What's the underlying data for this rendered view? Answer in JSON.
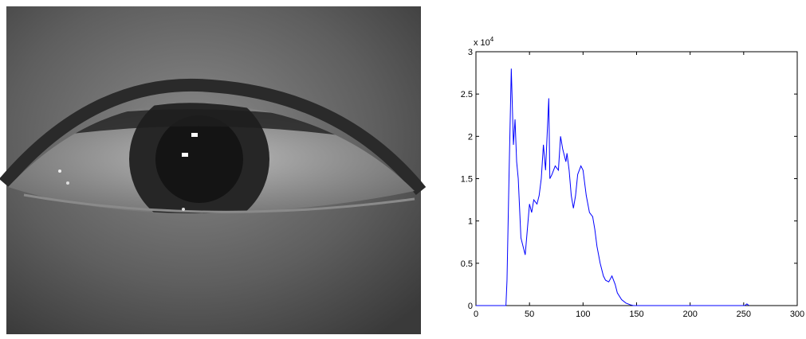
{
  "chart_data": {
    "type": "line",
    "y_multiplier": "x 10",
    "y_multiplier_exponent": "4",
    "x": [
      0,
      28,
      29,
      31,
      33,
      35,
      36.5,
      38,
      39.5,
      42,
      44,
      46,
      48,
      50,
      52,
      54,
      57,
      59,
      61,
      63,
      65,
      68,
      69,
      71,
      74,
      77,
      79,
      81,
      84,
      85,
      87,
      89,
      91,
      93,
      95,
      98,
      100,
      103,
      106,
      109,
      111,
      113,
      116,
      119,
      121,
      124,
      127,
      130,
      132,
      136,
      140,
      144,
      147,
      200,
      251,
      253,
      255
    ],
    "series": [
      {
        "color": "#0000ff",
        "values": [
          0,
          0,
          0.3,
          1.6,
          2.8,
          1.9,
          2.2,
          1.7,
          1.5,
          0.8,
          0.7,
          0.6,
          0.9,
          1.2,
          1.1,
          1.25,
          1.2,
          1.3,
          1.5,
          1.9,
          1.6,
          2.45,
          1.5,
          1.55,
          1.65,
          1.6,
          2.0,
          1.85,
          1.7,
          1.8,
          1.6,
          1.3,
          1.15,
          1.3,
          1.55,
          1.65,
          1.6,
          1.3,
          1.1,
          1.05,
          0.9,
          0.7,
          0.5,
          0.35,
          0.3,
          0.28,
          0.35,
          0.25,
          0.15,
          0.07,
          0.03,
          0.01,
          0,
          0,
          0,
          0.02,
          0
        ]
      }
    ],
    "xlim": [
      0,
      300
    ],
    "xticks": [
      0,
      50,
      100,
      150,
      200,
      250,
      300
    ],
    "ylim": [
      0,
      3
    ],
    "yticks": [
      0,
      0.5,
      1,
      1.5,
      2,
      2.5,
      3
    ]
  }
}
